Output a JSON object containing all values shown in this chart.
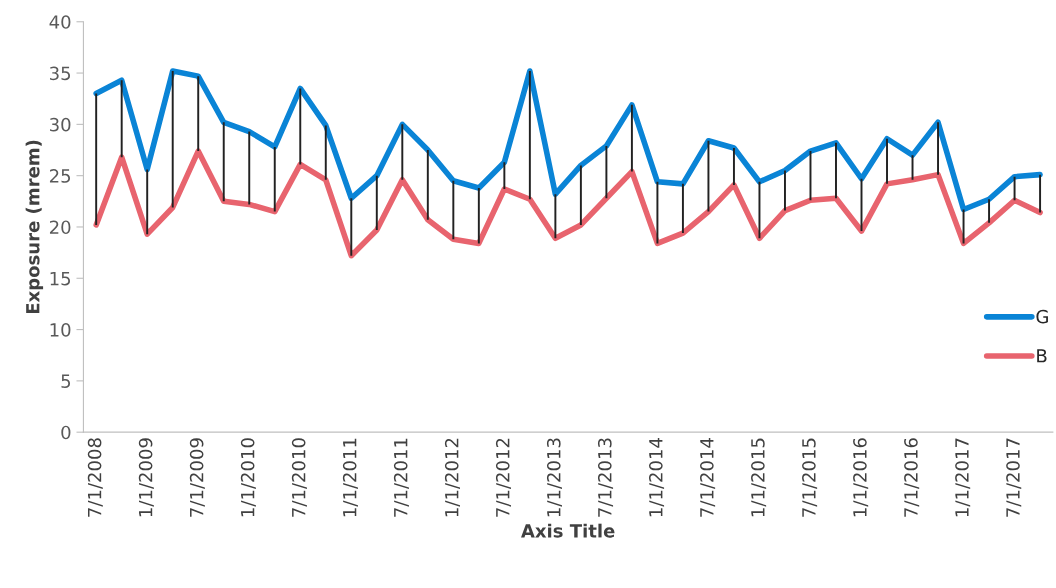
{
  "chart_data": {
    "type": "line",
    "xlabel": "Axis Title",
    "ylabel": "Exposure (mrem)",
    "categories": [
      "7/1/2008",
      null,
      "1/1/2009",
      null,
      "7/1/2009",
      null,
      "1/1/2010",
      null,
      "7/1/2010",
      null,
      "1/1/2011",
      null,
      "7/1/2011",
      null,
      "1/1/2012",
      null,
      "7/1/2012",
      null,
      "1/1/2013",
      null,
      "7/1/2013",
      null,
      "1/1/2014",
      null,
      "7/1/2014",
      null,
      "1/1/2015",
      null,
      "7/1/2015",
      null,
      "1/1/2016",
      null,
      "7/1/2016",
      null,
      "1/1/2017",
      null,
      "7/1/2017",
      null
    ],
    "series": [
      {
        "name": "G",
        "color": "#0a84d6",
        "values": [
          33,
          34.3,
          25.6,
          35.2,
          34.7,
          30.2,
          29.3,
          27.8,
          33.5,
          29.9,
          22.8,
          25,
          30,
          27.5,
          24.5,
          23.8,
          26.3,
          35.2,
          23.2,
          26,
          27.9,
          31.9,
          24.4,
          24.2,
          28.4,
          27.7,
          24.4,
          25.5,
          27.4,
          28.2,
          24.7,
          28.6,
          27,
          30.2,
          21.7,
          22.7,
          24.9,
          25.1
        ]
      },
      {
        "name": "B",
        "color": "#e8646e",
        "values": [
          20.2,
          26.8,
          19.3,
          21.9,
          27.4,
          22.5,
          22.2,
          21.5,
          26.1,
          24.6,
          17.2,
          19.7,
          24.6,
          20.7,
          18.8,
          18.4,
          23.7,
          22.7,
          18.9,
          20.2,
          22.8,
          25.4,
          18.4,
          19.4,
          21.5,
          24.1,
          18.9,
          21.6,
          22.6,
          22.8,
          19.6,
          24.2,
          24.6,
          25.1,
          18.4,
          20.4,
          22.6,
          21.4
        ],
        "errors": [
          [
            20.2,
            33
          ],
          [
            26.8,
            34.3
          ],
          [
            19.3,
            25.6
          ],
          [
            21.9,
            35.2
          ],
          [
            27.4,
            34.7
          ],
          [
            22.5,
            30.2
          ],
          [
            22.2,
            29.3
          ],
          [
            21.5,
            27.8
          ],
          [
            26.1,
            33.5
          ],
          [
            24.6,
            29.9
          ],
          [
            17.2,
            22.8
          ],
          [
            19.7,
            25
          ],
          [
            24.6,
            30
          ],
          [
            20.7,
            27.5
          ],
          [
            18.8,
            24.5
          ],
          [
            18.4,
            23.8
          ],
          [
            23.7,
            26.3
          ],
          [
            22.7,
            35.2
          ],
          [
            18.9,
            23.2
          ],
          [
            20.2,
            26
          ],
          [
            22.8,
            27.9
          ],
          [
            25.4,
            31.9
          ],
          [
            18.4,
            24.4
          ],
          [
            19.4,
            24.2
          ],
          [
            21.5,
            28.4
          ],
          [
            24.1,
            27.7
          ],
          [
            18.9,
            24.4
          ],
          [
            21.6,
            25.5
          ],
          [
            22.6,
            27.4
          ],
          [
            22.8,
            28.2
          ],
          [
            19.6,
            24.7
          ],
          [
            24.2,
            28.6
          ],
          [
            24.6,
            27
          ],
          [
            25.1,
            30.2
          ],
          [
            18.4,
            21.7
          ],
          [
            20.4,
            22.7
          ],
          [
            22.6,
            24.9
          ],
          [
            21.4,
            25.1
          ]
        ]
      }
    ],
    "ylim": [
      0,
      40
    ],
    "yticks": [
      0,
      5,
      10,
      15,
      20,
      25,
      30,
      35,
      40
    ],
    "grid": false,
    "legend": "right",
    "marker": "none",
    "line_style": "solid"
  }
}
